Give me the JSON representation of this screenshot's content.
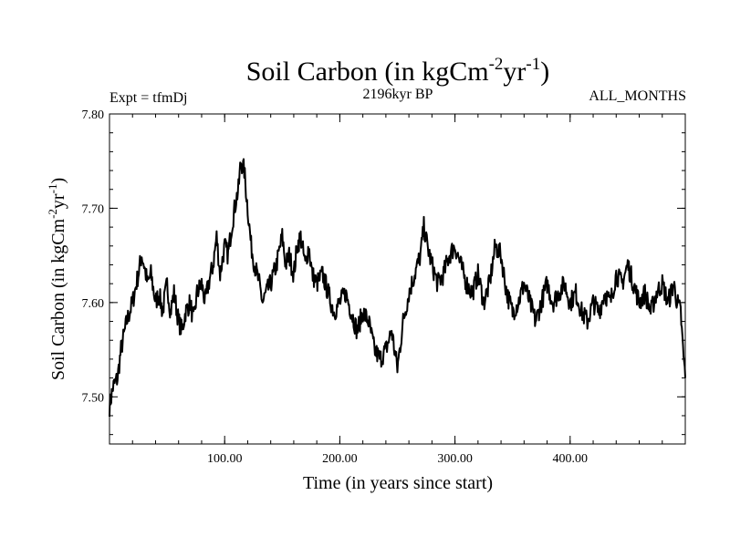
{
  "chart_data": {
    "type": "line",
    "title_main": "Soil Carbon (in kgCm",
    "title_exp1": "-2",
    "title_mid": "yr",
    "title_exp2": "-1",
    "title_close": ")",
    "subtitle_left": "Expt = tfmDj",
    "subtitle_center": "2196kyr BP",
    "subtitle_right": "ALL_MONTHS",
    "xlabel": "Time (in years since start)",
    "ylabel_main": "Soil Carbon (in kgCm",
    "ylabel_exp1": "-2",
    "ylabel_mid": "yr",
    "ylabel_exp2": "-1",
    "ylabel_close": ")",
    "xlim": [
      0,
      500
    ],
    "ylim": [
      7.45,
      7.8
    ],
    "x_ticks": [
      100,
      200,
      300,
      400
    ],
    "x_tick_labels": [
      "100.00",
      "200.00",
      "300.00",
      "400.00"
    ],
    "y_ticks": [
      7.5,
      7.6,
      7.7,
      7.8
    ],
    "y_tick_labels": [
      "7.50",
      "7.60",
      "7.70",
      "7.80"
    ],
    "grid": false,
    "line_color": "#000000",
    "series": [
      {
        "x": [
          0,
          3,
          7,
          10,
          15,
          20,
          25,
          28,
          30,
          33,
          36,
          40,
          43,
          46,
          50,
          53,
          56,
          60,
          63,
          66,
          70,
          73,
          76,
          80,
          83,
          86,
          90,
          93,
          96,
          100,
          103,
          106,
          110,
          112,
          114,
          117,
          120,
          123,
          126,
          130,
          133,
          136,
          140,
          145,
          150,
          153,
          156,
          160,
          163,
          166,
          170,
          173,
          176,
          180,
          185,
          190,
          195,
          200,
          205,
          210,
          215,
          220,
          225,
          230,
          235,
          240,
          245,
          250,
          253,
          255,
          260,
          265,
          270,
          273,
          276,
          280,
          285,
          290,
          295,
          300,
          305,
          310,
          315,
          320,
          325,
          330,
          335,
          340,
          345,
          350,
          355,
          360,
          365,
          370,
          375,
          380,
          385,
          390,
          395,
          400,
          405,
          410,
          415,
          420,
          425,
          430,
          435,
          440,
          445,
          450,
          455,
          460,
          465,
          470,
          475,
          480,
          485,
          490,
          493,
          496,
          498,
          500
        ],
        "y": [
          7.49,
          7.51,
          7.52,
          7.55,
          7.58,
          7.6,
          7.63,
          7.65,
          7.64,
          7.62,
          7.63,
          7.6,
          7.61,
          7.59,
          7.62,
          7.59,
          7.61,
          7.58,
          7.57,
          7.59,
          7.6,
          7.58,
          7.61,
          7.62,
          7.6,
          7.62,
          7.64,
          7.67,
          7.63,
          7.66,
          7.65,
          7.68,
          7.71,
          7.72,
          7.75,
          7.74,
          7.7,
          7.66,
          7.64,
          7.62,
          7.6,
          7.61,
          7.62,
          7.64,
          7.67,
          7.64,
          7.65,
          7.63,
          7.66,
          7.67,
          7.64,
          7.66,
          7.63,
          7.62,
          7.63,
          7.61,
          7.59,
          7.6,
          7.61,
          7.59,
          7.57,
          7.59,
          7.58,
          7.55,
          7.54,
          7.55,
          7.57,
          7.53,
          7.56,
          7.58,
          7.61,
          7.63,
          7.65,
          7.68,
          7.66,
          7.64,
          7.62,
          7.63,
          7.65,
          7.66,
          7.64,
          7.62,
          7.61,
          7.63,
          7.6,
          7.62,
          7.66,
          7.65,
          7.61,
          7.59,
          7.6,
          7.62,
          7.6,
          7.58,
          7.6,
          7.62,
          7.6,
          7.61,
          7.62,
          7.6,
          7.61,
          7.59,
          7.58,
          7.6,
          7.59,
          7.61,
          7.6,
          7.63,
          7.62,
          7.64,
          7.62,
          7.6,
          7.61,
          7.59,
          7.61,
          7.62,
          7.6,
          7.62,
          7.6,
          7.59,
          7.55,
          7.52
        ]
      }
    ]
  }
}
